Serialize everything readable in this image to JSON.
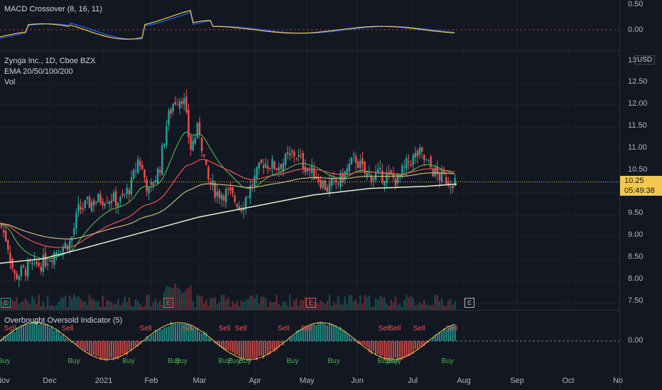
{
  "macd": {
    "title": "MACD Crossover (8, 16, 11)",
    "ticks": [
      "0.50",
      "0.00"
    ]
  },
  "main": {
    "title": "Zynga Inc., 1D, Cboe BZX",
    "indicator1": "EMA 20/50/100/200",
    "indicator2": "Vol",
    "currency": "USD",
    "top_tick": "13",
    "current_price": "10.25",
    "countdown": "05:49:38",
    "earnings_badge": "E",
    "ticks": [
      "12.50",
      "12.00",
      "11.50",
      "11.00",
      "10.50",
      "9.50",
      "9.00",
      "8.50",
      "8.00",
      "7.50"
    ]
  },
  "osc": {
    "title": "Overbought Oversold Indicator (5)",
    "tick": "0.00",
    "buy": "Buy",
    "sell": "Sell"
  },
  "x_labels": [
    "Nov",
    "Dec",
    "2021",
    "Feb",
    "Mar",
    "Apr",
    "May",
    "Jun",
    "Jul",
    "Aug",
    "Sep",
    "Oct",
    "No"
  ],
  "colors": {
    "up": "#26a69a",
    "down": "#ef5350",
    "macd": "#2962ff",
    "signal": "#f2c94c",
    "ema20": "#4caf50",
    "ema50": "#ef5350",
    "ema100": "#c8b57a",
    "ema200": "#ecebd0",
    "price_line": "#f2c94c"
  },
  "chart_data": [
    {
      "type": "line",
      "title": "MACD Crossover (8, 16, 11)",
      "x": [
        "Nov",
        "Dec",
        "2021",
        "Feb",
        "Mar",
        "Apr",
        "May",
        "Jun",
        "Jul",
        "Aug"
      ],
      "series": [],
      "ylim": [
        -0.2,
        0.55
      ]
    },
    {
      "type": "candlestick",
      "title": "Zynga Inc., 1D, Cboe BZX",
      "x": [
        "Nov",
        "Dec",
        "2021",
        "Feb",
        "Mar",
        "Apr",
        "May",
        "Jun",
        "Jul",
        "Aug"
      ],
      "ohlc_close": [
        9.3,
        8.2,
        8.4,
        8.8,
        9.8,
        10.7,
        12.1,
        10.6,
        10.0,
        10.8,
        10.4,
        10.3,
        10.6,
        10.6,
        10.4,
        10.25
      ],
      "ema200_approx": [
        8.4,
        8.5,
        8.7,
        8.9,
        9.2,
        9.4,
        9.6,
        9.8,
        10.0,
        10.1,
        10.15,
        10.25
      ],
      "last_price": 10.25,
      "ylim": [
        7.4,
        13.0
      ],
      "grid": true
    },
    {
      "type": "bar",
      "title": "Overbought Oversold Indicator (5)",
      "signals": {
        "buy_count": 18,
        "sell_count": 12
      },
      "ylim": [
        -1,
        1
      ]
    }
  ]
}
